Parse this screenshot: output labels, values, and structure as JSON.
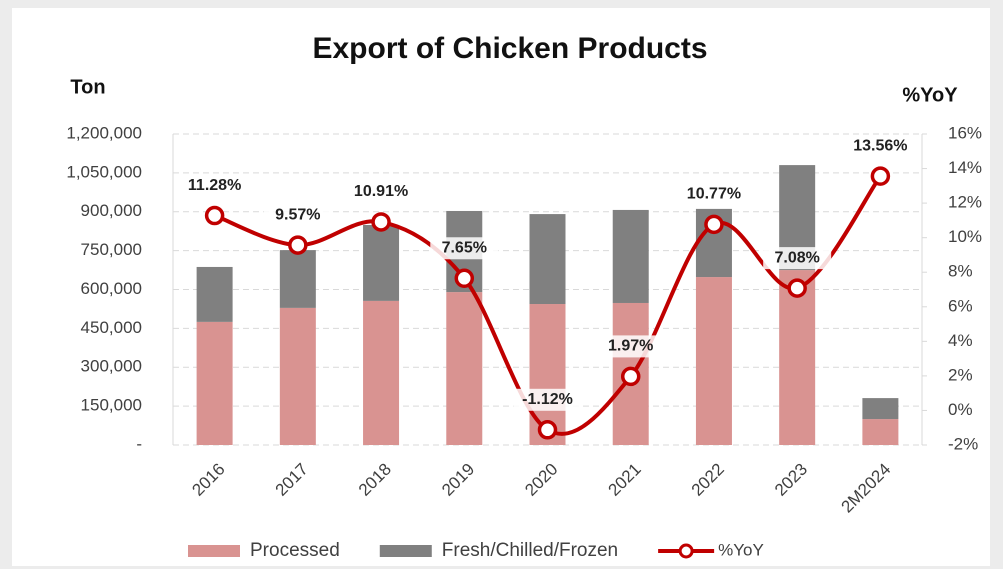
{
  "chart_data": {
    "type": "bar",
    "title": "Export of Chicken Products",
    "y_label": "Ton",
    "y2_label": "%YoY",
    "categories": [
      "2016",
      "2017",
      "2018",
      "2019",
      "2020",
      "2021",
      "2022",
      "2023",
      "2M2024"
    ],
    "stacked": true,
    "series": [
      {
        "name": "Processed",
        "color": "#d99391",
        "values": [
          475000,
          529000,
          556000,
          590000,
          544000,
          548000,
          648000,
          675000,
          100000
        ]
      },
      {
        "name": "Fresh/Chilled/Frozen",
        "color": "#808080",
        "values": [
          212000,
          223000,
          293000,
          313000,
          347000,
          359000,
          263000,
          405000,
          81000
        ]
      },
      {
        "name": "%YoY",
        "color": "#c00000",
        "type": "line",
        "axis": "y2",
        "values": [
          11.28,
          9.57,
          10.91,
          7.65,
          -1.12,
          1.97,
          10.77,
          7.08,
          13.56
        ],
        "value_labels": [
          "11.28%",
          "9.57%",
          "10.91%",
          "7.65%",
          "-1.12%",
          "1.97%",
          "10.77%",
          "7.08%",
          "13.56%"
        ]
      }
    ],
    "ylim": [
      0,
      1200000
    ],
    "yticks": [
      {
        "value": 0,
        "label": "-"
      },
      {
        "value": 150000,
        "label": "150,000"
      },
      {
        "value": 300000,
        "label": "300,000"
      },
      {
        "value": 450000,
        "label": "450,000"
      },
      {
        "value": 600000,
        "label": "600,000"
      },
      {
        "value": 750000,
        "label": "750,000"
      },
      {
        "value": 900000,
        "label": "900,000"
      },
      {
        "value": 1050000,
        "label": "1,050,000"
      },
      {
        "value": 1200000,
        "label": "1,200,000"
      }
    ],
    "y2lim": [
      -2,
      16
    ],
    "y2ticks": [
      {
        "value": -2,
        "label": "-2%"
      },
      {
        "value": 0,
        "label": "0%"
      },
      {
        "value": 2,
        "label": "2%"
      },
      {
        "value": 4,
        "label": "4%"
      },
      {
        "value": 6,
        "label": "6%"
      },
      {
        "value": 8,
        "label": "8%"
      },
      {
        "value": 10,
        "label": "10%"
      },
      {
        "value": 12,
        "label": "12%"
      },
      {
        "value": 14,
        "label": "14%"
      },
      {
        "value": 16,
        "label": "16%"
      }
    ],
    "grid": true,
    "legend": "bottom"
  }
}
